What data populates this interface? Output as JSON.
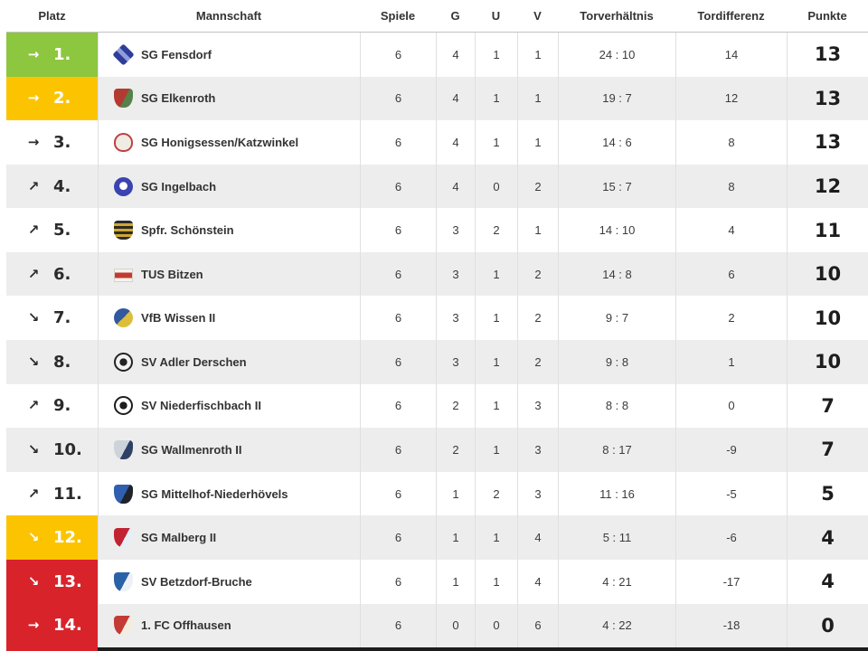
{
  "header": {
    "columns": [
      "Platz",
      "Mannschaft",
      "Spiele",
      "G",
      "U",
      "V",
      "Torverhältnis",
      "Tordifferenz",
      "Punkte"
    ]
  },
  "colors": {
    "green": "#8dc63f",
    "yellow": "#fcc400",
    "red": "#d8232b",
    "stripe": "#ededed",
    "bottom_bar": "#1c1c1c"
  },
  "rows": [
    {
      "rank": "1.",
      "trend": "→",
      "trend_dir": "steady",
      "highlight": "green",
      "team": "SG Fensdorf",
      "logo_shape": "diamond",
      "logo_colors": [
        "#2e3d9b",
        "#8f9bdb"
      ],
      "spiele": "6",
      "g": "4",
      "u": "1",
      "v": "1",
      "torverhaeltnis": "24 : 10",
      "tordifferenz": "14",
      "punkte": "13"
    },
    {
      "rank": "2.",
      "trend": "→",
      "trend_dir": "steady",
      "highlight": "yellow",
      "team": "SG Elkenroth",
      "logo_shape": "shield",
      "logo_colors": [
        "#b23a31",
        "#55824a"
      ],
      "spiele": "6",
      "g": "4",
      "u": "1",
      "v": "1",
      "torverhaeltnis": "19 : 7",
      "tordifferenz": "12",
      "punkte": "13"
    },
    {
      "rank": "3.",
      "trend": "→",
      "trend_dir": "steady",
      "highlight": null,
      "team": "SG Honigsessen/Katzwinkel",
      "logo_shape": "round-shield",
      "logo_colors": [
        "#f0ece4",
        "#bf4040"
      ],
      "spiele": "6",
      "g": "4",
      "u": "1",
      "v": "1",
      "torverhaeltnis": "14 : 6",
      "tordifferenz": "8",
      "punkte": "13"
    },
    {
      "rank": "4.",
      "trend": "↗",
      "trend_dir": "up",
      "highlight": null,
      "team": "SG Ingelbach",
      "logo_shape": "ball",
      "logo_colors": [
        "#3a43b0",
        "#ffffff"
      ],
      "spiele": "6",
      "g": "4",
      "u": "0",
      "v": "2",
      "torverhaeltnis": "15 : 7",
      "tordifferenz": "8",
      "punkte": "12"
    },
    {
      "rank": "5.",
      "trend": "↗",
      "trend_dir": "up",
      "highlight": null,
      "team": "Spfr. Schönstein",
      "logo_shape": "striped-shield",
      "logo_colors": [
        "#2e2a25",
        "#cfa832"
      ],
      "spiele": "6",
      "g": "3",
      "u": "2",
      "v": "1",
      "torverhaeltnis": "14 : 10",
      "tordifferenz": "4",
      "punkte": "11"
    },
    {
      "rank": "6.",
      "trend": "↗",
      "trend_dir": "up",
      "highlight": null,
      "team": "TUS Bitzen",
      "logo_shape": "badge",
      "logo_colors": [
        "#f5f3ef",
        "#c23b2e"
      ],
      "spiele": "6",
      "g": "3",
      "u": "1",
      "v": "2",
      "torverhaeltnis": "14 : 8",
      "tordifferenz": "6",
      "punkte": "10"
    },
    {
      "rank": "7.",
      "trend": "↘",
      "trend_dir": "down",
      "highlight": null,
      "team": "VfB Wissen II",
      "logo_shape": "split-circle",
      "logo_colors": [
        "#31599f",
        "#ddbe3a"
      ],
      "spiele": "6",
      "g": "3",
      "u": "1",
      "v": "2",
      "torverhaeltnis": "9 : 7",
      "tordifferenz": "2",
      "punkte": "10"
    },
    {
      "rank": "8.",
      "trend": "↘",
      "trend_dir": "down",
      "highlight": null,
      "team": "SV Adler Derschen",
      "logo_shape": "emblem",
      "logo_colors": [
        "#f2f2f2",
        "#232323"
      ],
      "spiele": "6",
      "g": "3",
      "u": "1",
      "v": "2",
      "torverhaeltnis": "9 : 8",
      "tordifferenz": "1",
      "punkte": "10"
    },
    {
      "rank": "9.",
      "trend": "↗",
      "trend_dir": "up",
      "highlight": null,
      "team": "SV Niederfischbach II",
      "logo_shape": "emblem",
      "logo_colors": [
        "#ffffff",
        "#1d1d1d"
      ],
      "spiele": "6",
      "g": "2",
      "u": "1",
      "v": "3",
      "torverhaeltnis": "8 : 8",
      "tordifferenz": "0",
      "punkte": "7"
    },
    {
      "rank": "10.",
      "trend": "↘",
      "trend_dir": "down",
      "highlight": null,
      "team": "SG Wallmenroth II",
      "logo_shape": "shield",
      "logo_colors": [
        "#ccd3da",
        "#2e4165"
      ],
      "spiele": "6",
      "g": "2",
      "u": "1",
      "v": "3",
      "torverhaeltnis": "8 : 17",
      "tordifferenz": "-9",
      "punkte": "7"
    },
    {
      "rank": "11.",
      "trend": "↗",
      "trend_dir": "up",
      "highlight": null,
      "team": "SG Mittelhof-Niederhövels",
      "logo_shape": "shield",
      "logo_colors": [
        "#2f5fae",
        "#20242a"
      ],
      "spiele": "6",
      "g": "1",
      "u": "2",
      "v": "3",
      "torverhaeltnis": "11 : 16",
      "tordifferenz": "-5",
      "punkte": "5"
    },
    {
      "rank": "12.",
      "trend": "↘",
      "trend_dir": "down",
      "highlight": "yellow",
      "team": "SG Malberg II",
      "logo_shape": "shield",
      "logo_colors": [
        "#c22330",
        "#e8eef5"
      ],
      "spiele": "6",
      "g": "1",
      "u": "1",
      "v": "4",
      "torverhaeltnis": "5 : 11",
      "tordifferenz": "-6",
      "punkte": "4"
    },
    {
      "rank": "13.",
      "trend": "↘",
      "trend_dir": "down",
      "highlight": "red",
      "team": "SV Betzdorf-Bruche",
      "logo_shape": "shield",
      "logo_colors": [
        "#2a62a8",
        "#edf1f6"
      ],
      "spiele": "6",
      "g": "1",
      "u": "1",
      "v": "4",
      "torverhaeltnis": "4 : 21",
      "tordifferenz": "-17",
      "punkte": "4"
    },
    {
      "rank": "14.",
      "trend": "→",
      "trend_dir": "steady",
      "highlight": "red",
      "team": "1. FC Offhausen",
      "logo_shape": "shield",
      "logo_colors": [
        "#c43a35",
        "#f3ede1"
      ],
      "spiele": "6",
      "g": "0",
      "u": "0",
      "v": "6",
      "torverhaeltnis": "4 : 22",
      "tordifferenz": "-18",
      "punkte": "0"
    }
  ]
}
